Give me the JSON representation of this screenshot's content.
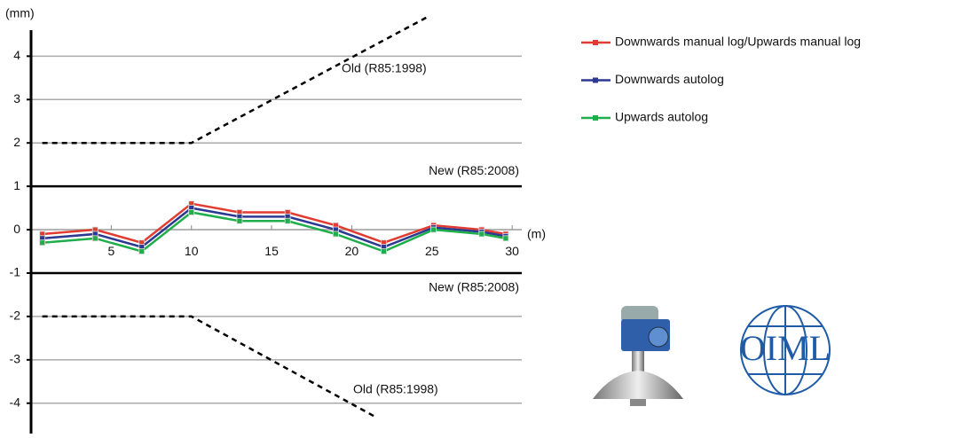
{
  "chart_data": {
    "type": "line",
    "y_unit": "(mm)",
    "x_unit": "(m)",
    "xlim": [
      0,
      30.6
    ],
    "ylim": [
      -4.7,
      4.6
    ],
    "xticks": [
      5,
      10,
      15,
      20,
      25,
      30
    ],
    "yticks": [
      -4,
      -3,
      -2,
      -1,
      0,
      1,
      2,
      3,
      4
    ],
    "grid": true,
    "x": [
      0.7,
      4,
      6.9,
      10,
      13,
      16,
      19,
      22,
      25.1,
      28.1,
      29.6
    ],
    "series": [
      {
        "name": "Downwards manual log/Upwards manual log",
        "color": "#e03c31",
        "values": [
          -0.1,
          0,
          -0.3,
          0.6,
          0.4,
          0.4,
          0.1,
          -0.3,
          0.1,
          0,
          -0.1
        ]
      },
      {
        "name": "Downwards autolog",
        "color": "#2b3990",
        "values": [
          -0.2,
          -0.1,
          -0.4,
          0.5,
          0.3,
          0.3,
          0,
          -0.4,
          0.05,
          -0.05,
          -0.15
        ]
      },
      {
        "name": "Upwards autolog",
        "color": "#1fae4b",
        "values": [
          -0.3,
          -0.2,
          -0.5,
          0.4,
          0.2,
          0.2,
          -0.1,
          -0.5,
          0,
          -0.1,
          -0.2
        ]
      }
    ],
    "reference_lines": [
      {
        "label": "Old (R85:1998)",
        "style": "dashed",
        "x": [
          0.7,
          10,
          24.7
        ],
        "values": [
          2,
          2,
          4.9
        ]
      },
      {
        "label": "New (R85:2008)",
        "style": "solid",
        "x": [
          0,
          30.6
        ],
        "values": [
          1,
          1
        ]
      },
      {
        "label": "New (R85:2008)",
        "style": "solid",
        "x": [
          0,
          30.6
        ],
        "values": [
          -1,
          -1
        ]
      },
      {
        "label": "Old (R85:1998)",
        "style": "dashed",
        "x": [
          0.7,
          10,
          21.4
        ],
        "values": [
          -2,
          -2,
          -4.3
        ]
      }
    ],
    "logo_text": "OIML"
  }
}
